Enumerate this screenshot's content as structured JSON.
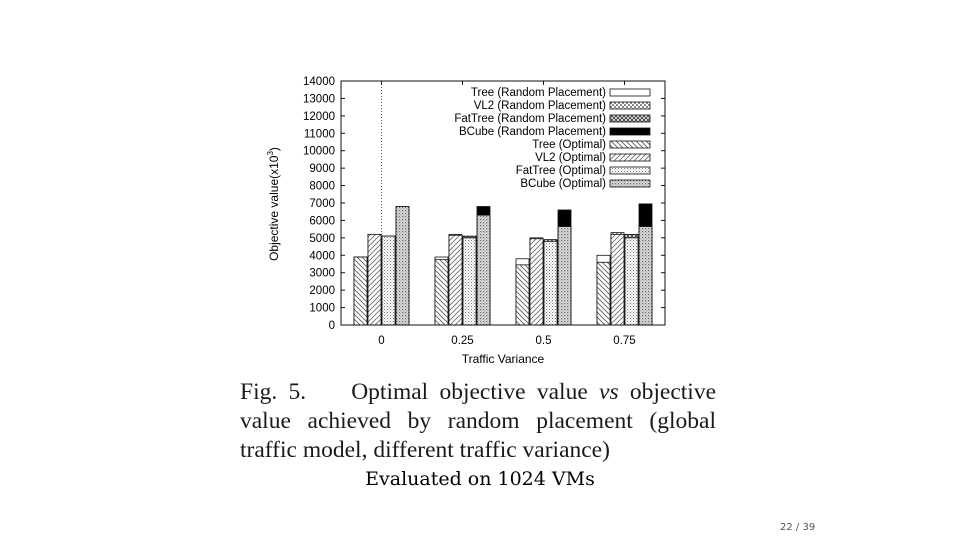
{
  "chart_data": {
    "type": "bar",
    "categories": [
      "0",
      "0.25",
      "0.5",
      "0.75"
    ],
    "xlabel": "Traffic Variance",
    "ylabel": "Objective value(x10",
    "ylabel_exponent": "3",
    "ylabel_close": ")",
    "ylim": [
      0,
      14000
    ],
    "yticks": [
      0,
      1000,
      2000,
      3000,
      4000,
      5000,
      6000,
      7000,
      8000,
      9000,
      10000,
      11000,
      12000,
      13000,
      14000
    ],
    "legend_position": "top-right",
    "series": [
      {
        "name": "Tree (Random Placement)",
        "pattern": "white",
        "values": [
          3900,
          3900,
          3800,
          4000
        ]
      },
      {
        "name": "VL2 (Random Placement)",
        "pattern": "checker",
        "values": [
          5200,
          5200,
          5000,
          5300
        ]
      },
      {
        "name": "FatTree (Random Placement)",
        "pattern": "crosshatch",
        "values": [
          5100,
          5100,
          4900,
          5200
        ]
      },
      {
        "name": "BCube (Random Placement)",
        "pattern": "black",
        "values": [
          6800,
          6800,
          6600,
          6950
        ]
      },
      {
        "name": "Tree (Optimal)",
        "pattern": "diag",
        "values": [
          3900,
          3750,
          3450,
          3600
        ]
      },
      {
        "name": "VL2 (Optimal)",
        "pattern": "diagcross",
        "values": [
          5200,
          5150,
          4950,
          5200
        ]
      },
      {
        "name": "FatTree (Optimal)",
        "pattern": "stipple",
        "values": [
          5100,
          5000,
          4800,
          5000
        ]
      },
      {
        "name": "BCube (Optimal)",
        "pattern": "dots",
        "values": [
          6800,
          6300,
          5650,
          5650
        ]
      }
    ]
  },
  "colors": {
    "axis": "#111111",
    "black_fill": "#000000"
  },
  "caption": {
    "fig_label": "Fig. 5.",
    "text_before_vs": "Optimal objective value",
    "vs": "vs",
    "text_after_vs": "objective value achieved by random placement (global traffic model, different traffic variance)"
  },
  "subtitle": "Evaluated on 1024 VMs",
  "page_number": "22 / 39"
}
